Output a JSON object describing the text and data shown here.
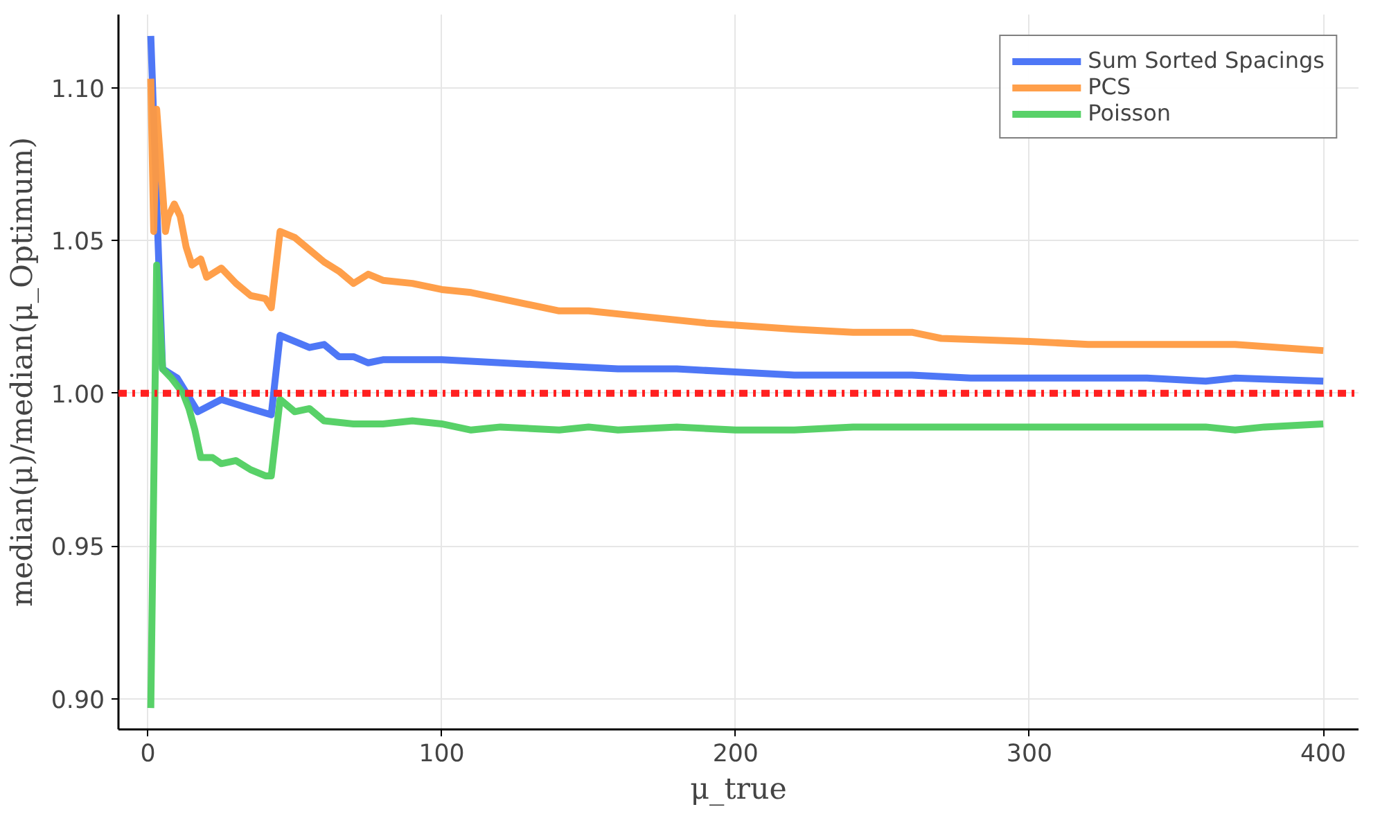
{
  "chart_data": {
    "type": "line",
    "xlabel": "μ_true",
    "ylabel": "median(μ)/median(μ_Optimum)",
    "xlim": [
      -10,
      412
    ],
    "ylim": [
      0.89,
      1.124
    ],
    "xticks": [
      0,
      100,
      200,
      300,
      400
    ],
    "yticks": [
      {
        "value": 0.9,
        "label": "0.90"
      },
      {
        "value": 0.95,
        "label": "0.95"
      },
      {
        "value": 1.0,
        "label": "1.00"
      },
      {
        "value": 1.05,
        "label": "1.05"
      },
      {
        "value": 1.1,
        "label": "1.10"
      }
    ],
    "grid": true,
    "legend": "top right",
    "line_style": "solid",
    "series": [
      {
        "name": "Sum Sorted Spacings",
        "color": "#4470f5",
        "x": [
          1,
          5,
          10,
          17,
          25,
          35,
          42,
          45,
          50,
          55,
          60,
          65,
          70,
          75,
          80,
          90,
          100,
          120,
          140,
          160,
          180,
          200,
          220,
          240,
          260,
          280,
          300,
          320,
          340,
          360,
          370,
          400
        ],
        "values": [
          1.117,
          1.008,
          1.005,
          0.994,
          0.998,
          0.995,
          0.993,
          1.019,
          1.017,
          1.015,
          1.016,
          1.012,
          1.012,
          1.01,
          1.011,
          1.011,
          1.011,
          1.01,
          1.009,
          1.008,
          1.008,
          1.007,
          1.006,
          1.006,
          1.006,
          1.005,
          1.005,
          1.005,
          1.005,
          1.004,
          1.005,
          1.004
        ]
      },
      {
        "name": "PCS",
        "color": "#ff9a40",
        "x": [
          1,
          2,
          3,
          4,
          6,
          7,
          9,
          11,
          13,
          15,
          18,
          20,
          25,
          30,
          35,
          40,
          42,
          45,
          50,
          55,
          60,
          65,
          70,
          75,
          80,
          90,
          100,
          110,
          120,
          140,
          150,
          170,
          190,
          220,
          240,
          260,
          270,
          300,
          320,
          340,
          360,
          370,
          400
        ],
        "values": [
          1.103,
          1.053,
          1.093,
          1.08,
          1.053,
          1.058,
          1.062,
          1.058,
          1.048,
          1.042,
          1.044,
          1.038,
          1.041,
          1.036,
          1.032,
          1.031,
          1.028,
          1.053,
          1.051,
          1.047,
          1.043,
          1.04,
          1.036,
          1.039,
          1.037,
          1.036,
          1.034,
          1.033,
          1.031,
          1.027,
          1.027,
          1.025,
          1.023,
          1.021,
          1.02,
          1.02,
          1.018,
          1.017,
          1.016,
          1.016,
          1.016,
          1.016,
          1.014
        ]
      },
      {
        "name": "Poisson",
        "color": "#4fcf60",
        "x": [
          1,
          3,
          5,
          8,
          12,
          14,
          16,
          18,
          22,
          25,
          30,
          35,
          40,
          42,
          45,
          50,
          55,
          60,
          70,
          80,
          90,
          100,
          110,
          120,
          140,
          150,
          160,
          180,
          200,
          220,
          240,
          260,
          280,
          300,
          320,
          340,
          360,
          370,
          380,
          400
        ],
        "values": [
          0.897,
          1.042,
          1.008,
          1.005,
          1.0,
          0.995,
          0.988,
          0.979,
          0.979,
          0.977,
          0.978,
          0.975,
          0.973,
          0.973,
          0.998,
          0.994,
          0.995,
          0.991,
          0.99,
          0.99,
          0.991,
          0.99,
          0.988,
          0.989,
          0.988,
          0.989,
          0.988,
          0.989,
          0.988,
          0.988,
          0.989,
          0.989,
          0.989,
          0.989,
          0.989,
          0.989,
          0.989,
          0.988,
          0.989,
          0.99
        ]
      }
    ],
    "ref_lines": [
      {
        "axis": "y",
        "value": 1.0,
        "color": "#ff2020",
        "line_style": "dashdot"
      }
    ]
  }
}
